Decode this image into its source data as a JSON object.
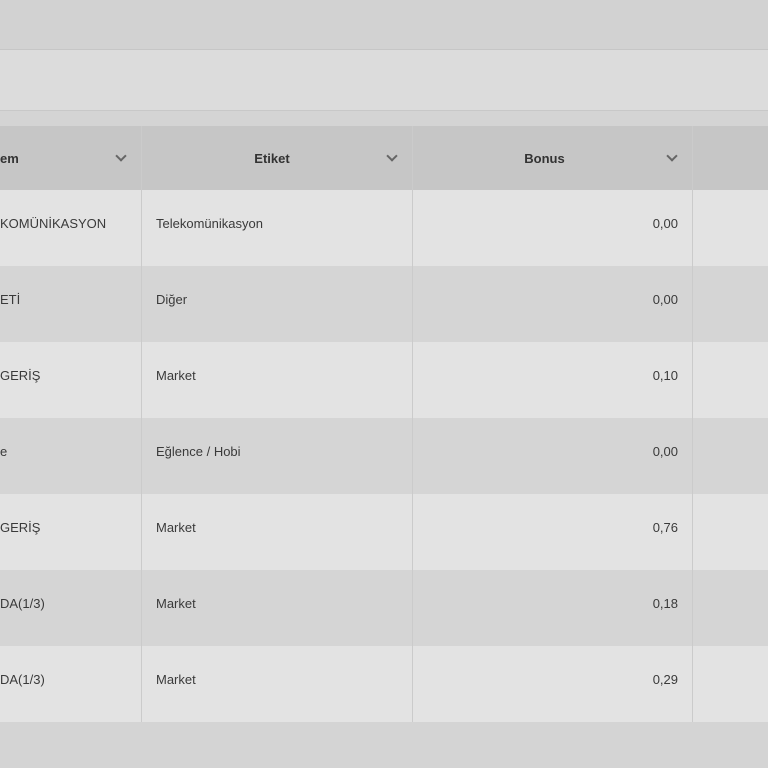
{
  "table": {
    "headers": [
      "em",
      "Etiket",
      "Bonus",
      ""
    ],
    "rows": [
      {
        "islem": "KOMÜNİKASYON",
        "etiket": "Telekomünikasyon",
        "bonus": "0,00"
      },
      {
        "islem": "ETİ",
        "etiket": "Diğer",
        "bonus": "0,00"
      },
      {
        "islem": "GERİŞ",
        "etiket": "Market",
        "bonus": "0,10"
      },
      {
        "islem": "e",
        "etiket": "Eğlence / Hobi",
        "bonus": "0,00"
      },
      {
        "islem": "GERİŞ",
        "etiket": "Market",
        "bonus": "0,76"
      },
      {
        "islem": "DA(1/3)",
        "etiket": "Market",
        "bonus": "0,18"
      },
      {
        "islem": "DA(1/3)",
        "etiket": "Market",
        "bonus": "0,29"
      }
    ]
  }
}
